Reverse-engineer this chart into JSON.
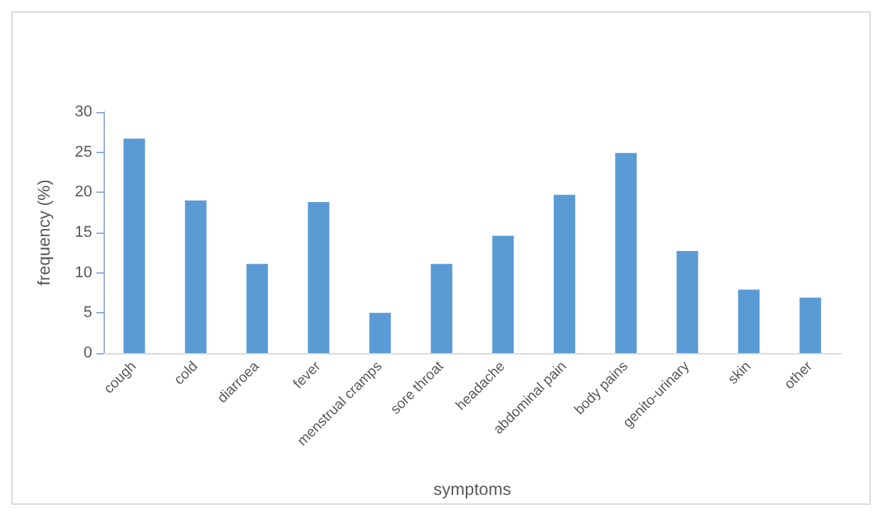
{
  "chart_data": {
    "type": "bar",
    "xlabel": "symptoms",
    "ylabel": "frequency (%)",
    "categories": [
      "cough",
      "cold",
      "diarroea",
      "fever",
      "menstrual cramps",
      "sore throat",
      "headache",
      "abdominal pain",
      "body pains",
      "genito-urinary",
      "skin",
      "other"
    ],
    "values": [
      26.7,
      19.0,
      11.1,
      18.8,
      5.0,
      11.1,
      14.6,
      19.7,
      24.9,
      12.7,
      7.9,
      6.9
    ],
    "color": "#5b9bd5",
    "ylim": [
      0,
      30
    ],
    "yticks": [
      0,
      5,
      10,
      15,
      20,
      25,
      30
    ],
    "grid": false
  }
}
